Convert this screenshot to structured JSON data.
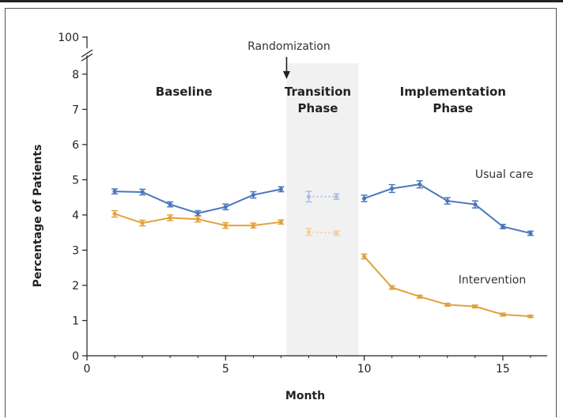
{
  "chart_data": {
    "type": "line",
    "xlabel": "Month",
    "ylabel": "Percentage of Patients",
    "xlim": [
      0,
      16.6
    ],
    "ylim": [
      0,
      8.4
    ],
    "xticks": [
      "0",
      "5",
      "10",
      "15"
    ],
    "yticks": [
      "0",
      "1",
      "2",
      "3",
      "4",
      "5",
      "6",
      "7",
      "8"
    ],
    "y_break_label": "100",
    "axis_break": true,
    "grid": false,
    "phases": [
      {
        "label_lines": [
          "Baseline"
        ],
        "x_center": 3.5
      },
      {
        "label_lines": [
          "Transition",
          "Phase"
        ],
        "x_center": 8.5,
        "shaded_range": [
          7.2,
          9.8
        ]
      },
      {
        "label_lines": [
          "Implementation",
          "Phase"
        ],
        "x_center": 13.2
      }
    ],
    "randomization": {
      "label": "Randomization",
      "x": 7.2
    },
    "series": [
      {
        "name": "Usual care",
        "color": "#4a77bd",
        "faded_color": "#a9c0e4",
        "label_x": 14.0,
        "label_y": 5.05,
        "segments": [
          {
            "style": "solid",
            "x": [
              1,
              2,
              3,
              4,
              5,
              6,
              7
            ],
            "y": [
              4.67,
              4.65,
              4.3,
              4.05,
              4.23,
              4.57,
              4.73
            ],
            "err": [
              0.07,
              0.08,
              0.07,
              0.07,
              0.08,
              0.09,
              0.07
            ]
          },
          {
            "style": "dotted",
            "x": [
              8,
              9
            ],
            "y": [
              4.52,
              4.52
            ],
            "err": [
              0.15,
              0.08
            ]
          },
          {
            "style": "solid",
            "x": [
              10,
              11,
              12,
              13,
              14,
              15,
              16
            ],
            "y": [
              4.47,
              4.75,
              4.87,
              4.4,
              4.3,
              3.67,
              3.48
            ],
            "err": [
              0.09,
              0.11,
              0.1,
              0.09,
              0.1,
              0.06,
              0.06
            ]
          }
        ]
      },
      {
        "name": "Intervention",
        "color": "#e0a23a",
        "faded_color": "#f2cf98",
        "label_x": 13.4,
        "label_y": 2.05,
        "segments": [
          {
            "style": "solid",
            "x": [
              1,
              2,
              3,
              4,
              5,
              6,
              7
            ],
            "y": [
              4.03,
              3.77,
              3.92,
              3.88,
              3.7,
              3.7,
              3.8
            ],
            "err": [
              0.09,
              0.08,
              0.08,
              0.08,
              0.08,
              0.07,
              0.06
            ]
          },
          {
            "style": "dotted",
            "x": [
              8,
              9
            ],
            "y": [
              3.52,
              3.48
            ],
            "err": [
              0.1,
              0.06
            ]
          },
          {
            "style": "solid",
            "x": [
              10,
              11,
              12,
              13,
              14,
              15,
              16
            ],
            "y": [
              2.82,
              1.94,
              1.68,
              1.45,
              1.4,
              1.17,
              1.12
            ],
            "err": [
              0.07,
              0.05,
              0.04,
              0.04,
              0.04,
              0.04,
              0.03
            ]
          }
        ]
      }
    ]
  }
}
